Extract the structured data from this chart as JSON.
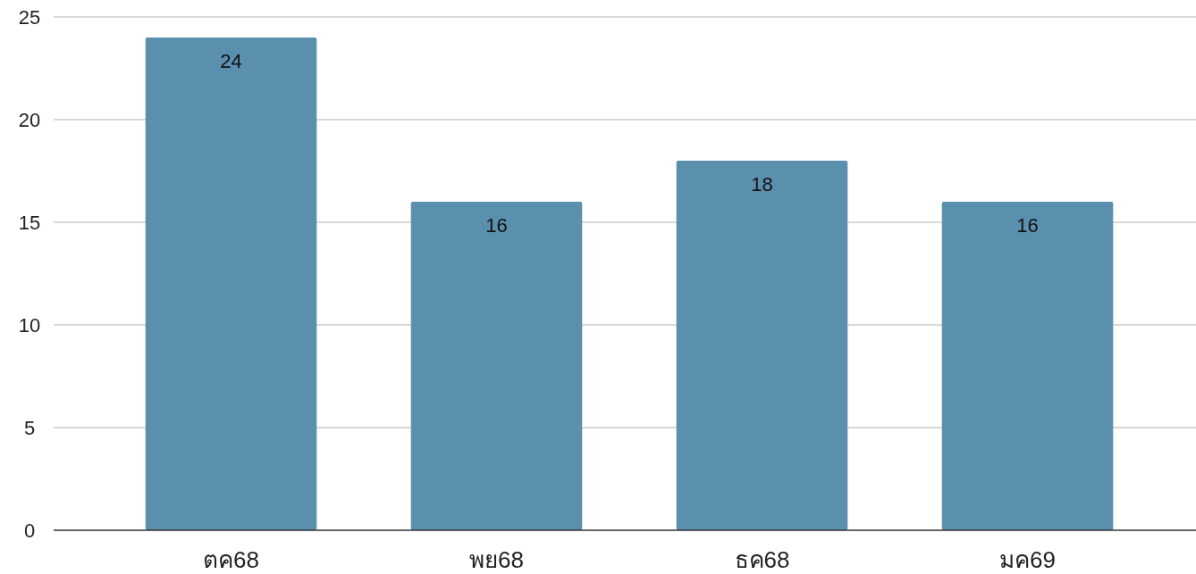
{
  "chart_data": {
    "type": "bar",
    "categories": [
      "ตค68",
      "พย68",
      "ธค68",
      "มค69"
    ],
    "values": [
      24,
      16,
      18,
      16
    ],
    "color": "#5a90ae",
    "ylim": [
      0,
      25
    ],
    "yticks": [
      0,
      5,
      10,
      15,
      20,
      25
    ],
    "grid": "y",
    "data_labels": true
  }
}
